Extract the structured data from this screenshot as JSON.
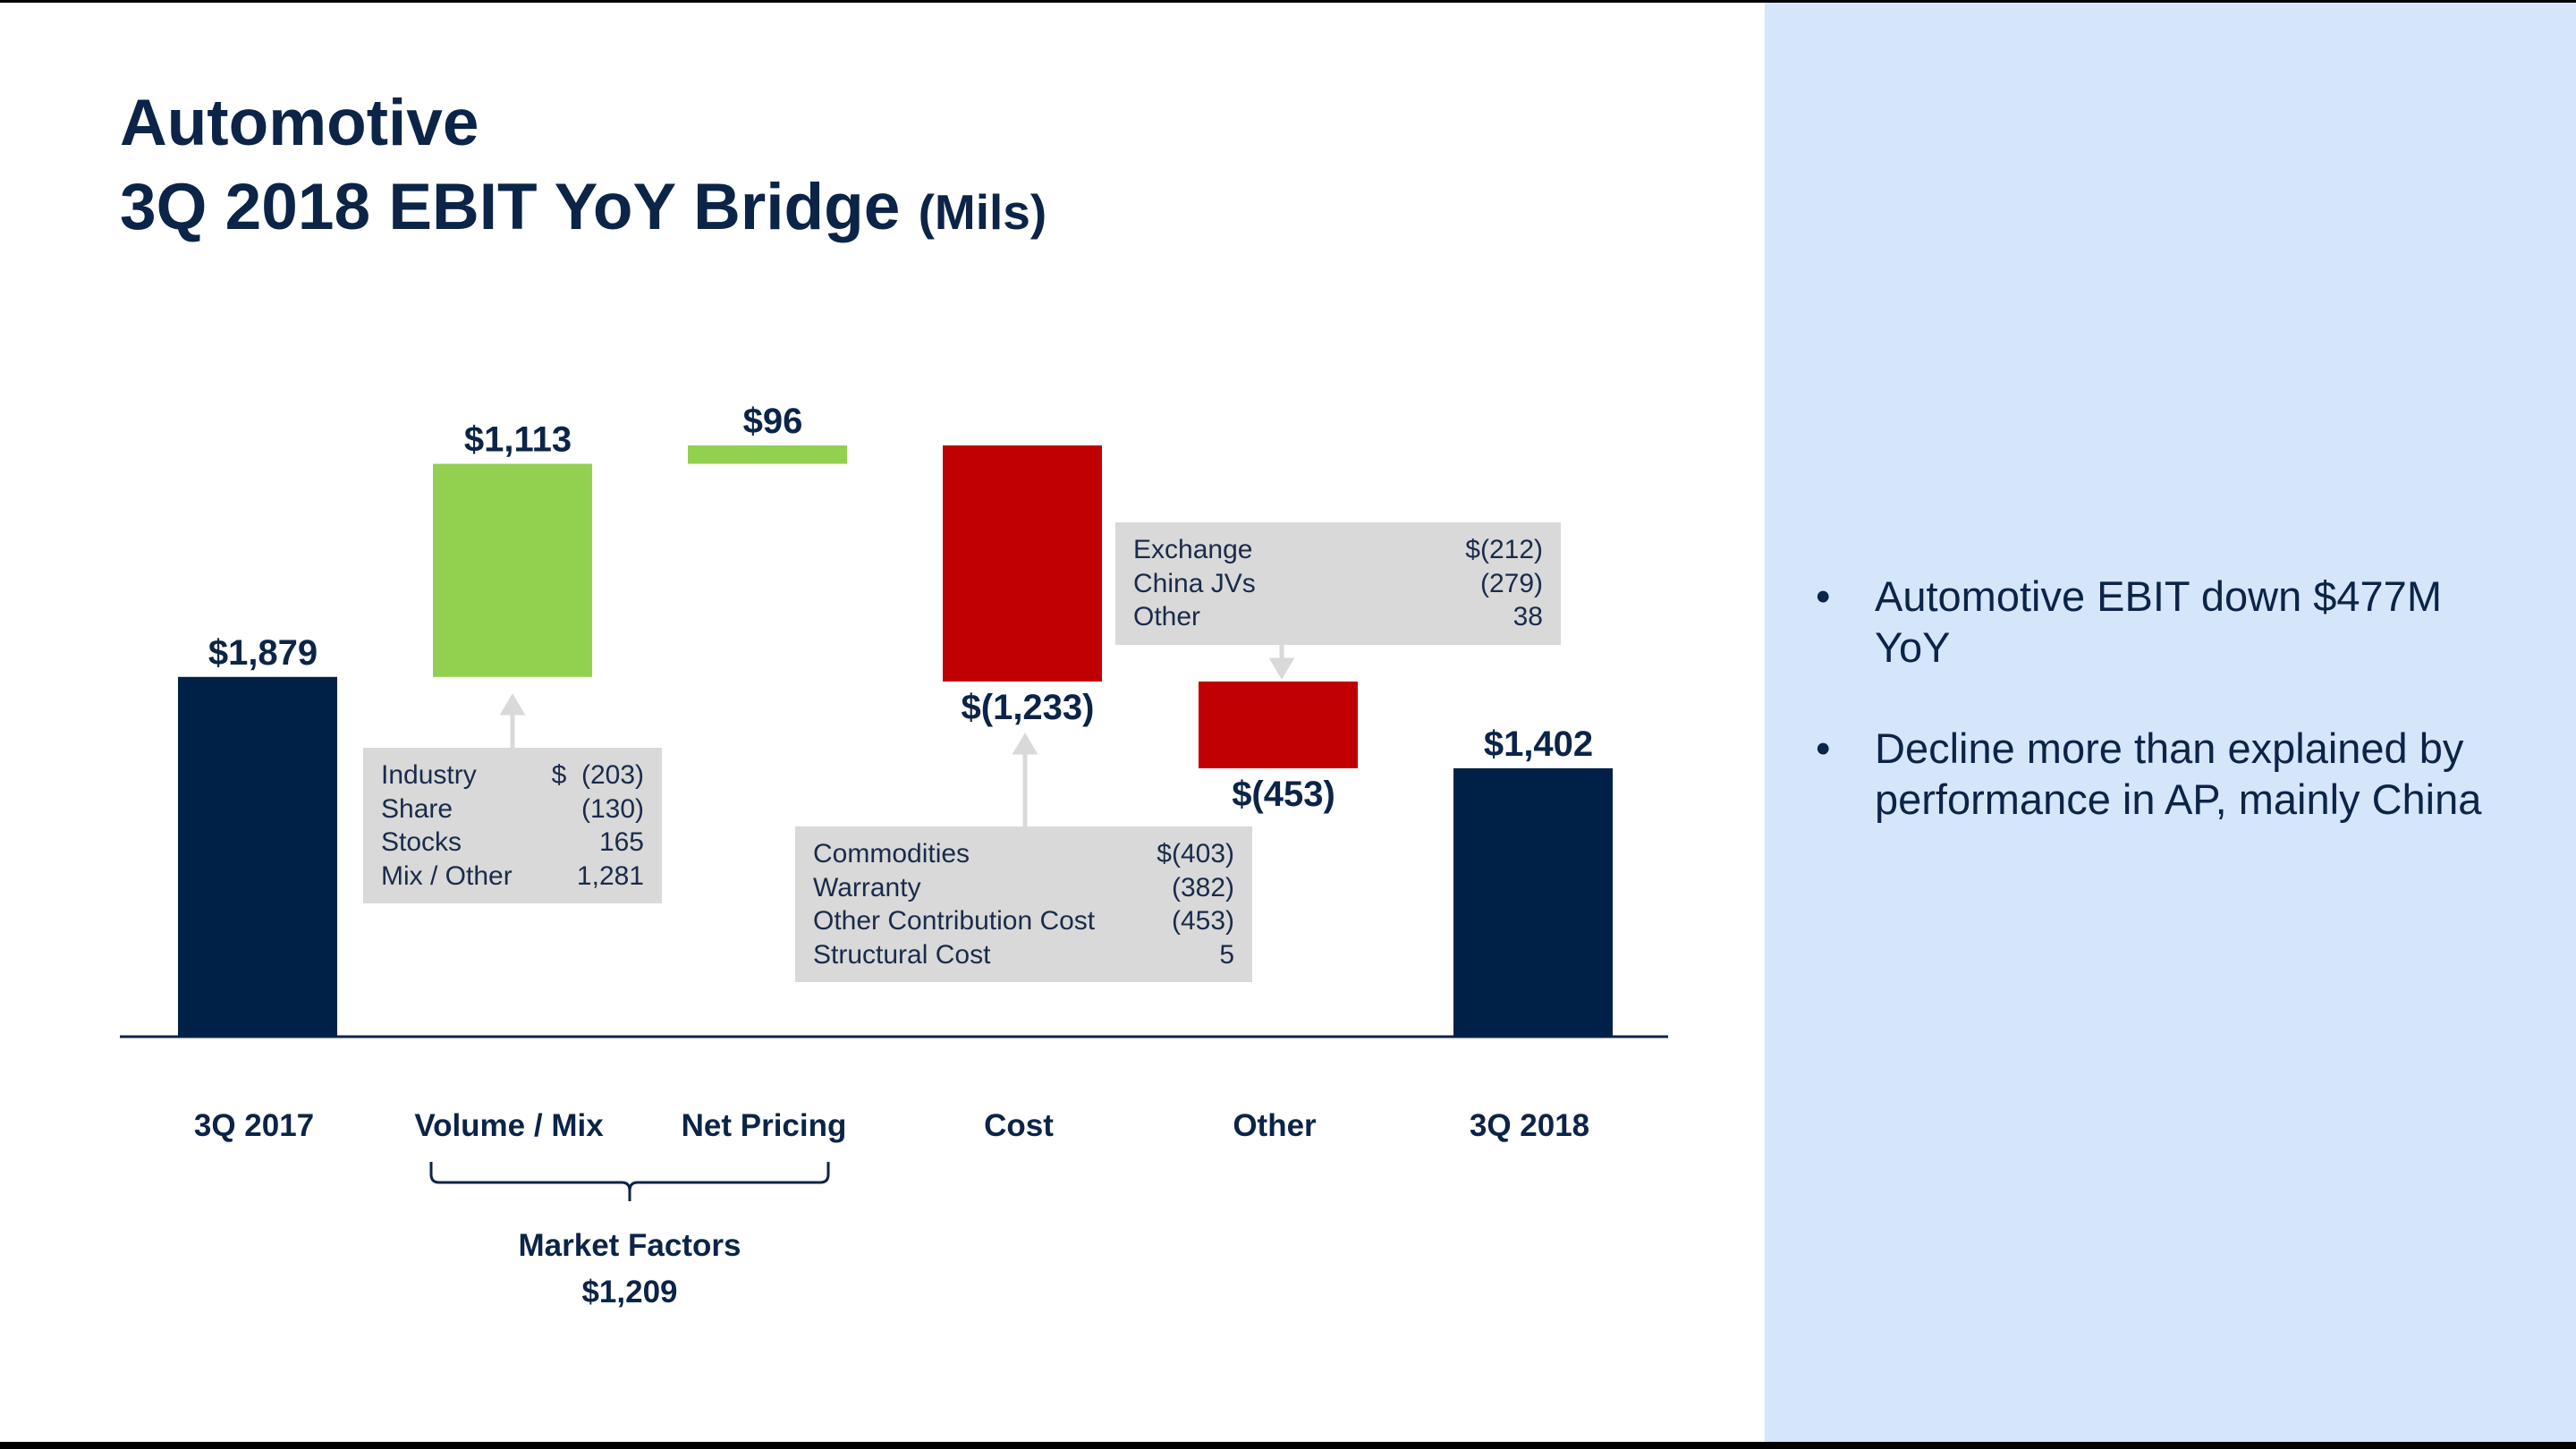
{
  "chart_data": {
    "type": "waterfall",
    "title": "Automotive",
    "subtitle": "3Q 2018 EBIT YoY Bridge",
    "unit_note": "(Mils)",
    "categories": [
      "3Q 2017",
      "Volume / Mix",
      "Net Pricing",
      "Cost",
      "Other",
      "3Q 2018"
    ],
    "measures": [
      "total",
      "relative",
      "relative",
      "relative",
      "relative",
      "total"
    ],
    "values": [
      1879,
      1113,
      96,
      -1233,
      -453,
      1402
    ],
    "value_labels": [
      "$1,879",
      "$1,113",
      "$96",
      "$(1,233)",
      "$(453)",
      "$1,402"
    ],
    "total_color": "#002147",
    "increase_color": "#92d050",
    "decrease_color": "#c00000",
    "annotations": [
      {
        "rows": [
          [
            "Industry",
            "$  (203)"
          ],
          [
            "Share",
            "(130)"
          ],
          [
            "Stocks",
            "165"
          ],
          [
            "Mix / Other",
            "1,281"
          ]
        ]
      },
      {
        "rows": [
          [
            "Commodities",
            "$(403)"
          ],
          [
            "Warranty",
            "(382)"
          ],
          [
            "Other Contribution Cost",
            "(453)"
          ],
          [
            "Structural Cost",
            "5"
          ]
        ]
      },
      {
        "rows": [
          [
            "Exchange",
            "$(212)"
          ],
          [
            "China JVs",
            "(279)"
          ],
          [
            "Other",
            "38"
          ]
        ]
      }
    ],
    "group": {
      "label": "Market Factors",
      "total": "$1,209"
    }
  },
  "bullets": [
    "Automotive EBIT down $477M YoY",
    "Decline more than explained by performance in AP, mainly China"
  ]
}
